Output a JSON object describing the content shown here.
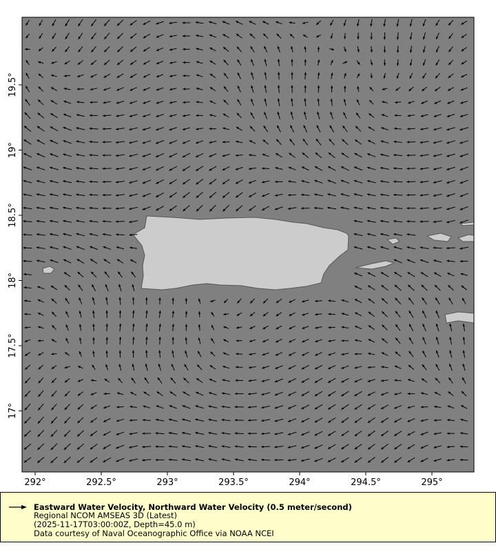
{
  "map": {
    "ocean_color": "#808080",
    "land_color": "#cccccc",
    "arrow_color": "#000000",
    "x_ticks": [
      "292°",
      "292.5°",
      "293°",
      "293.5°",
      "294°",
      "294.5°",
      "295°"
    ],
    "y_ticks": [
      "19.5°",
      "19°",
      "18.5°",
      "18°",
      "17.5°",
      "17°"
    ],
    "lon_range": [
      291.9,
      295.32
    ],
    "lat_range": [
      16.52,
      20.03
    ]
  },
  "legend": {
    "title": "Eastward Water Velocity, Northward Water Velocity (0.5 meter/second)",
    "dataset": "Regional NCOM AMSEAS 3D (Latest)",
    "time_depth": "(2025-11-17T03:00:00Z, Depth=45.0 m)",
    "credit": "Data courtesy of Naval Oceanographic Office via NOAA NCEI"
  }
}
